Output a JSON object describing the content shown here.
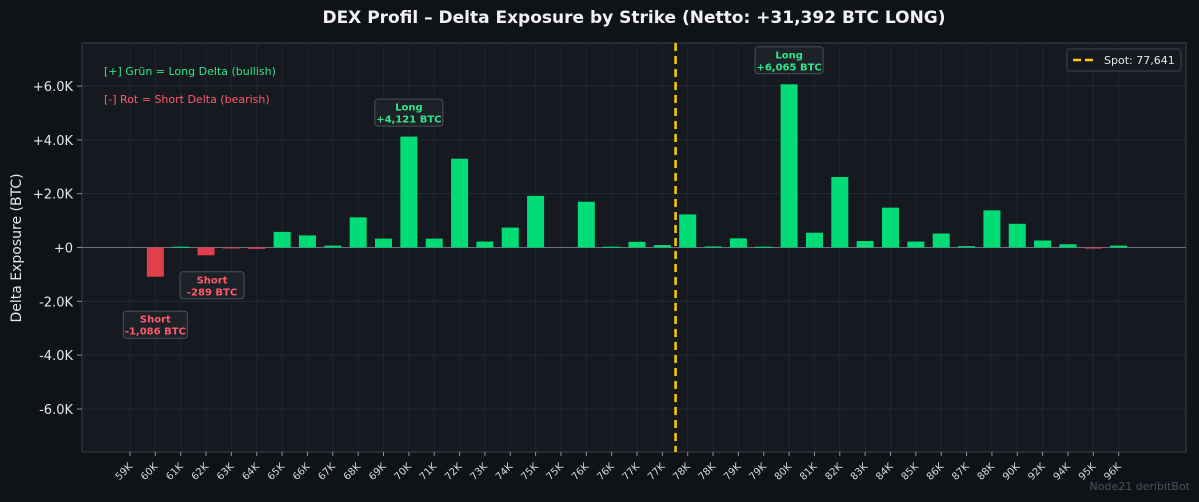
{
  "chart_data": {
    "type": "bar",
    "title": "DEX Profil – Delta Exposure by Strike (Netto: +31,392 BTC LONG)",
    "ylabel": "Delta Exposure (BTC)",
    "xlabel": "",
    "ylim": [
      -7600,
      7600
    ],
    "yticks": [
      -6000,
      -4000,
      -2000,
      0,
      2000,
      4000,
      6000
    ],
    "ytick_labels": [
      "-6.0K",
      "-4.0K",
      "-2.0K",
      "+0",
      "+2.0K",
      "+4.0K",
      "+6.0K"
    ],
    "grid": true,
    "categories": [
      "59K",
      "60K",
      "61K",
      "62K",
      "63K",
      "64K",
      "65K",
      "66K",
      "67K",
      "68K",
      "69K",
      "70K",
      "71K",
      "72K",
      "73K",
      "74K",
      "75K",
      "75K",
      "76K",
      "76K",
      "77K",
      "77K",
      "78K",
      "78K",
      "79K",
      "79K",
      "80K",
      "81K",
      "82K",
      "83K",
      "84K",
      "85K",
      "86K",
      "87K",
      "88K",
      "90K",
      "92K",
      "94K",
      "95K",
      "96K"
    ],
    "values": [
      0,
      -1086,
      30,
      -289,
      -20,
      -50,
      580,
      450,
      70,
      1120,
      330,
      4121,
      330,
      3300,
      220,
      740,
      1920,
      0,
      1700,
      30,
      210,
      90,
      1230,
      40,
      340,
      30,
      6065,
      550,
      2620,
      240,
      1480,
      220,
      520,
      50,
      1380,
      880,
      260,
      120,
      -40,
      70
    ],
    "colors": {
      "positive": "#00dd77",
      "negative": "#e0404e",
      "spot": "#ffcc00",
      "background": "#161a20"
    },
    "spot": {
      "value": 77641,
      "label": "Spot: 77,641",
      "legend_position": "top-right"
    },
    "notes": [
      {
        "text": "[+] Grün = Long Delta (bullish)",
        "color": "#2ee68a"
      },
      {
        "text": "[-] Rot = Short Delta (bearish)",
        "color": "#ff5a6a"
      }
    ],
    "annotations": [
      {
        "index": 26,
        "line1": "Long",
        "line2": "+6,065 BTC",
        "kind": "long"
      },
      {
        "index": 11,
        "line1": "Long",
        "line2": "+4,121 BTC",
        "kind": "long"
      },
      {
        "index": 1,
        "line1": "Short",
        "line2": "-1,086 BTC",
        "kind": "short"
      },
      {
        "index": 3,
        "line1": "Short",
        "line2": "-289 BTC",
        "kind": "short"
      }
    ]
  },
  "watermark": "Node21 deribitBot"
}
